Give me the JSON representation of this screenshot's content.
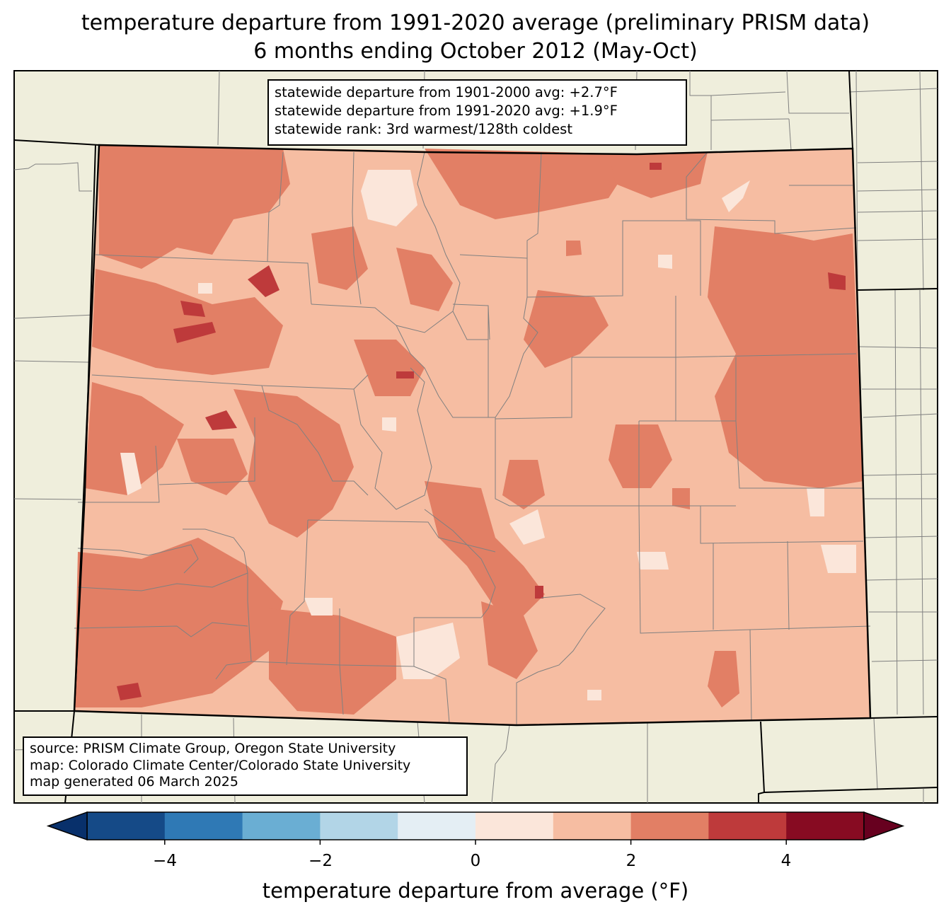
{
  "title_line1": "temperature departure from 1991-2020 average (preliminary PRISM data)",
  "title_line2": "6 months ending October 2012 (May-Oct)",
  "stats": {
    "line1": "statewide departure from 1901-2000 avg: +2.7°F",
    "line2": "statewide departure from 1991-2020 avg: +1.9°F",
    "line3": "statewide rank: 3rd warmest/128th coldest"
  },
  "source": {
    "line1": "source: PRISM Climate Group, Oregon State University",
    "line2": "map: Colorado Climate Center/Colorado State University",
    "line3": "map generated 06 March 2025"
  },
  "colorbar": {
    "label": "temperature departure from average (°F)",
    "ticks": [
      "−4",
      "−2",
      "0",
      "2",
      "4"
    ],
    "bins": [
      {
        "from": -5,
        "to": -4,
        "color": "#154a87"
      },
      {
        "from": -4,
        "to": -3,
        "color": "#2f79b5"
      },
      {
        "from": -3,
        "to": -2,
        "color": "#6aaed3"
      },
      {
        "from": -2,
        "to": -1,
        "color": "#b2d5e7"
      },
      {
        "from": -1,
        "to": 0,
        "color": "#e4eef4"
      },
      {
        "from": 0,
        "to": 1,
        "color": "#fbe6da"
      },
      {
        "from": 1,
        "to": 2,
        "color": "#f6bda2"
      },
      {
        "from": 2,
        "to": 3,
        "color": "#e27f65"
      },
      {
        "from": 3,
        "to": 4,
        "color": "#be3a3b"
      },
      {
        "from": 4,
        "to": 5,
        "color": "#870b22"
      }
    ],
    "under_color": "#08306b",
    "over_color": "#67001f"
  },
  "colors": {
    "land_background": "#efeedc",
    "state_fill_base": "#f6bda2",
    "warm_2_3": "#e27f65",
    "warm_3_4": "#be3a3b",
    "warm_0_1": "#fbe6da",
    "county_lines": "#808080"
  }
}
